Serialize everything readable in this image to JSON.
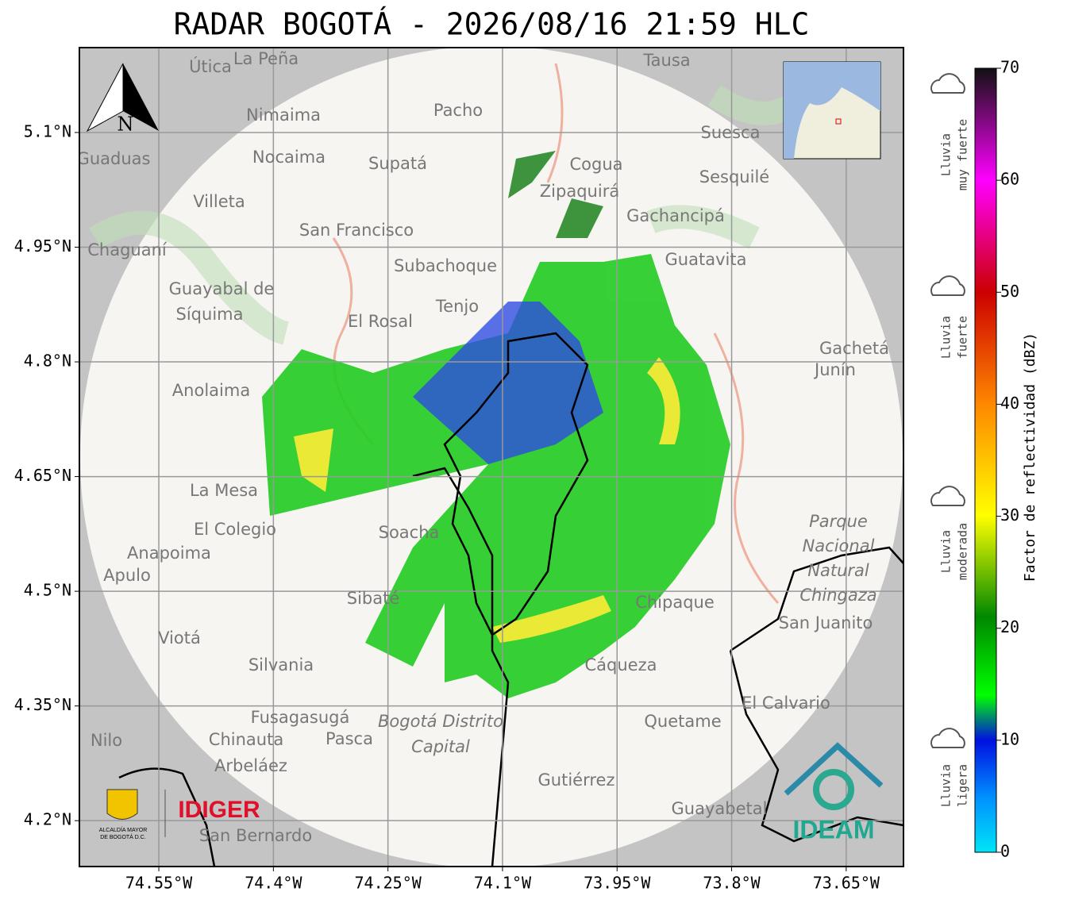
{
  "map": {
    "title": "RADAR BOGOTÁ - 2026/08/16 21:59 HLC",
    "xlim": [
      -74.654,
      -73.575
    ],
    "ylim": [
      4.14,
      5.211
    ],
    "xticks": [
      {
        "value": -74.55,
        "label": "74.55°W"
      },
      {
        "value": -74.4,
        "label": "74.4°W"
      },
      {
        "value": -74.25,
        "label": "74.25°W"
      },
      {
        "value": -74.1,
        "label": "74.1°W"
      },
      {
        "value": -73.95,
        "label": "73.95°W"
      },
      {
        "value": -73.8,
        "label": "73.8°W"
      },
      {
        "value": -73.65,
        "label": "73.65°W"
      }
    ],
    "yticks": [
      {
        "value": 5.1,
        "label": "5.1°N"
      },
      {
        "value": 4.95,
        "label": "4.95°N"
      },
      {
        "value": 4.8,
        "label": "4.8°N"
      },
      {
        "value": 4.65,
        "label": "4.65°N"
      },
      {
        "value": 4.5,
        "label": "4.5°N"
      },
      {
        "value": 4.35,
        "label": "4.35°N"
      },
      {
        "value": 4.2,
        "label": "4.2°N"
      }
    ],
    "places": [
      "Útica",
      "La Peña",
      "Tausa",
      "Pacho",
      "Nimaima",
      "Guaduas",
      "Nocaima",
      "Supatá",
      "Cogua",
      "Zipaquirá",
      "Suesca",
      "Sesquilé",
      "Villeta",
      "Gachancipá",
      "San Francisco",
      "Chaguaní",
      "Guatavita",
      "Subachoque",
      "Guayabal de",
      "Síquima",
      "Tenjo",
      "El Rosal",
      "Gachetá",
      "Junín",
      "Anolaima",
      "La Mesa",
      "El Colegio",
      "Soacha",
      "Anapoima",
      "Apulo",
      "Sibaté",
      "San Juanito",
      "Viotá",
      "Silvania",
      "Chipaque",
      "Cáqueza",
      "El Calvario",
      "Fusagasugá",
      "Quetame",
      "Nilo",
      "Chinauta",
      "Pasca",
      "Arbeláez",
      "Gutiérrez",
      "Guayabetal",
      "San Bernardo"
    ],
    "park": [
      "Parque",
      "Nacional",
      "Natural",
      "Chingaza"
    ],
    "district": [
      "Bogotá Distrito",
      "Capital"
    ],
    "north": "N",
    "logos": {
      "alcaldia": [
        "ALCALDÍA MAYOR",
        "DE BOGOTÁ D.C."
      ],
      "idiger": "IDIGER",
      "ideam": "IDEAM"
    },
    "colorbar": {
      "label": "Factor de reflectividad (dBZ)",
      "lim": [
        0,
        70
      ],
      "ticks": [
        0,
        10,
        20,
        30,
        40,
        50,
        60,
        70
      ]
    },
    "legend": [
      [
        "Lluvia",
        "muy fuerte"
      ],
      [
        "Lluvia",
        "fuerte"
      ],
      [
        "Lluvia",
        "moderada"
      ],
      [
        "Lluvia",
        "ligera"
      ]
    ]
  }
}
